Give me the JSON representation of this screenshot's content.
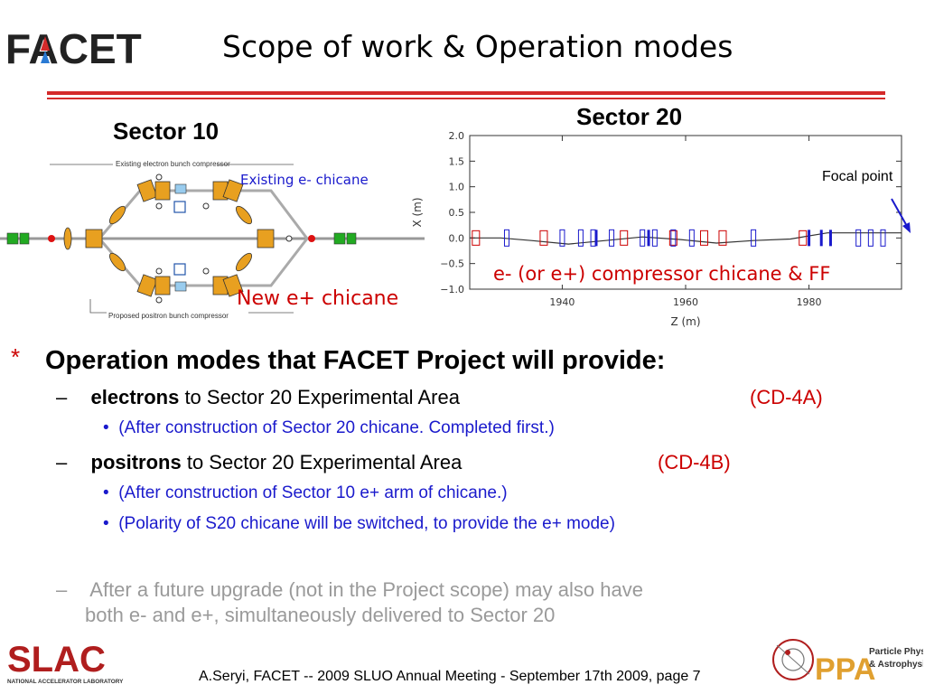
{
  "header": {
    "logo_text": "FACET",
    "title": "Scope of work & Operation modes"
  },
  "sector10": {
    "heading": "Sector 10",
    "top_label": "Existing electron bunch compressor",
    "bottom_label": "Proposed positron bunch compressor",
    "existing_chicane_label": "Existing e- chicane",
    "new_chicane_label": "New e+ chicane"
  },
  "sector20": {
    "heading": "Sector 20",
    "focal_label": "Focal point",
    "chicane_label": "e- (or e+) compressor chicane & FF"
  },
  "chart_data": {
    "type": "line",
    "title": "",
    "xlabel": "Z (m)",
    "ylabel": "X (m)",
    "xlim": [
      1925,
      1995
    ],
    "ylim": [
      -1.0,
      2.0
    ],
    "xticks": [
      "1940",
      "1960",
      "1980"
    ],
    "yticks": [
      "2.0",
      "1.5",
      "1.0",
      "0.5",
      "0.0",
      "−0.5",
      "−1.0"
    ],
    "series": [
      {
        "x": [
          1925,
          1930,
          1935,
          1941,
          1947,
          1953,
          1959,
          1965,
          1971,
          1977,
          1983,
          1995
        ],
        "y": [
          0.0,
          0.0,
          -0.05,
          -0.12,
          -0.05,
          0.02,
          -0.03,
          -0.1,
          -0.05,
          -0.02,
          0.1,
          0.1
        ]
      }
    ]
  },
  "bullets": {
    "star": "*",
    "heading": "Operation modes that FACET Project will provide:",
    "items": [
      {
        "dash": "–",
        "bold": "electrons",
        "text": " to Sector 20 Experimental Area",
        "tag": "(CD-4A)"
      },
      {
        "dot": "•",
        "text": "(After construction of Sector 20 chicane. Completed first.)"
      },
      {
        "dash": "–",
        "bold": "positrons",
        "text": " to Sector 20 Experimental Area",
        "tag": "(CD-4B)"
      },
      {
        "dot": "•",
        "text": "(After construction of Sector 10 e+ arm of chicane.)"
      },
      {
        "dot": "•",
        "text": "(Polarity of S20 chicane will be switched, to provide the e+ mode)"
      },
      {
        "dash": "–",
        "text": "After a future upgrade (not in the Project scope) may also have"
      },
      {
        "text": "both e- and e+, simultaneously delivered to Sector 20"
      }
    ]
  },
  "footer": {
    "text": "A.Seryi, FACET  -- 2009 SLUO Annual Meeting - September 17th 2009, page 7",
    "slac_logo": "SLAC",
    "slac_sub": "NATIONAL ACCELERATOR LABORATORY",
    "ppa_logo": "PPA",
    "ppa_sub1": "Particle Physics",
    "ppa_sub2": "& Astrophysics"
  },
  "colors": {
    "accent_red": "#d42a2a",
    "text_blue": "#1a1acc",
    "label_red": "#cc0000",
    "grey_text": "#9a9a9a"
  }
}
